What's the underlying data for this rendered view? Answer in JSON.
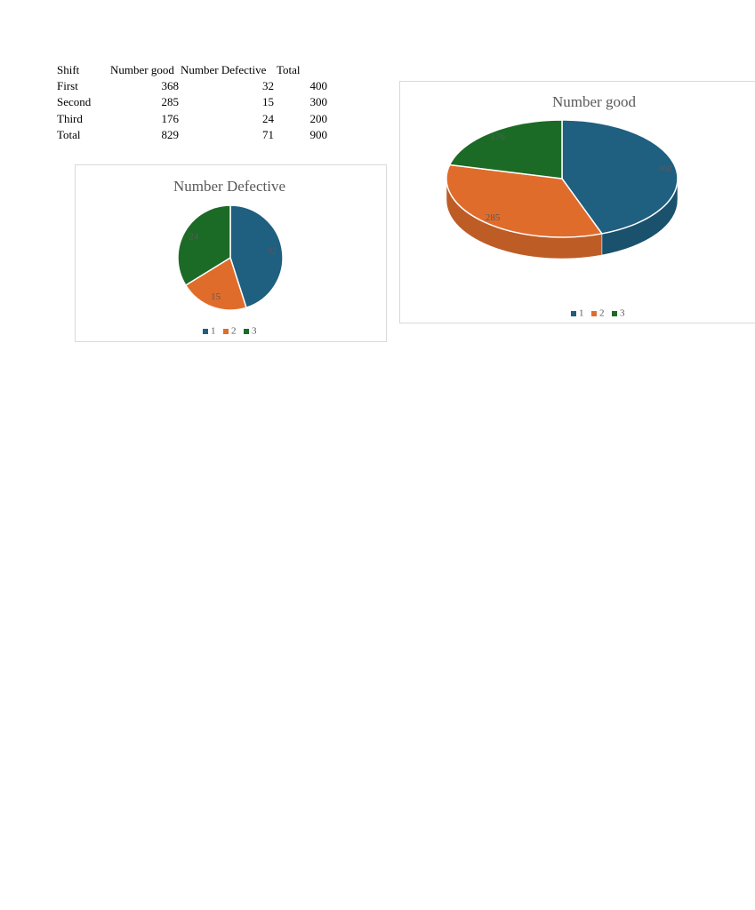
{
  "table": {
    "header": [
      "Shift",
      "Number good",
      "Number Defective",
      "Total"
    ],
    "rows": [
      [
        "First",
        368,
        32,
        400
      ],
      [
        "Second",
        285,
        15,
        300
      ],
      [
        "Third",
        176,
        24,
        200
      ],
      [
        "Total",
        829,
        71,
        900
      ]
    ]
  },
  "chart_data": [
    {
      "type": "pie",
      "title": "Number Defective",
      "categories": [
        "1",
        "2",
        "3"
      ],
      "values": [
        32,
        15,
        24
      ],
      "colors": [
        "#1f5f80",
        "#e06c2c",
        "#1b6b26"
      ],
      "legend": "bottom"
    },
    {
      "type": "pie3d",
      "title": "Number good",
      "categories": [
        "1",
        "2",
        "3"
      ],
      "values": [
        368,
        285,
        176
      ],
      "colors": [
        "#1f5f80",
        "#e06c2c",
        "#1b6b26"
      ],
      "legend": "bottom"
    }
  ]
}
